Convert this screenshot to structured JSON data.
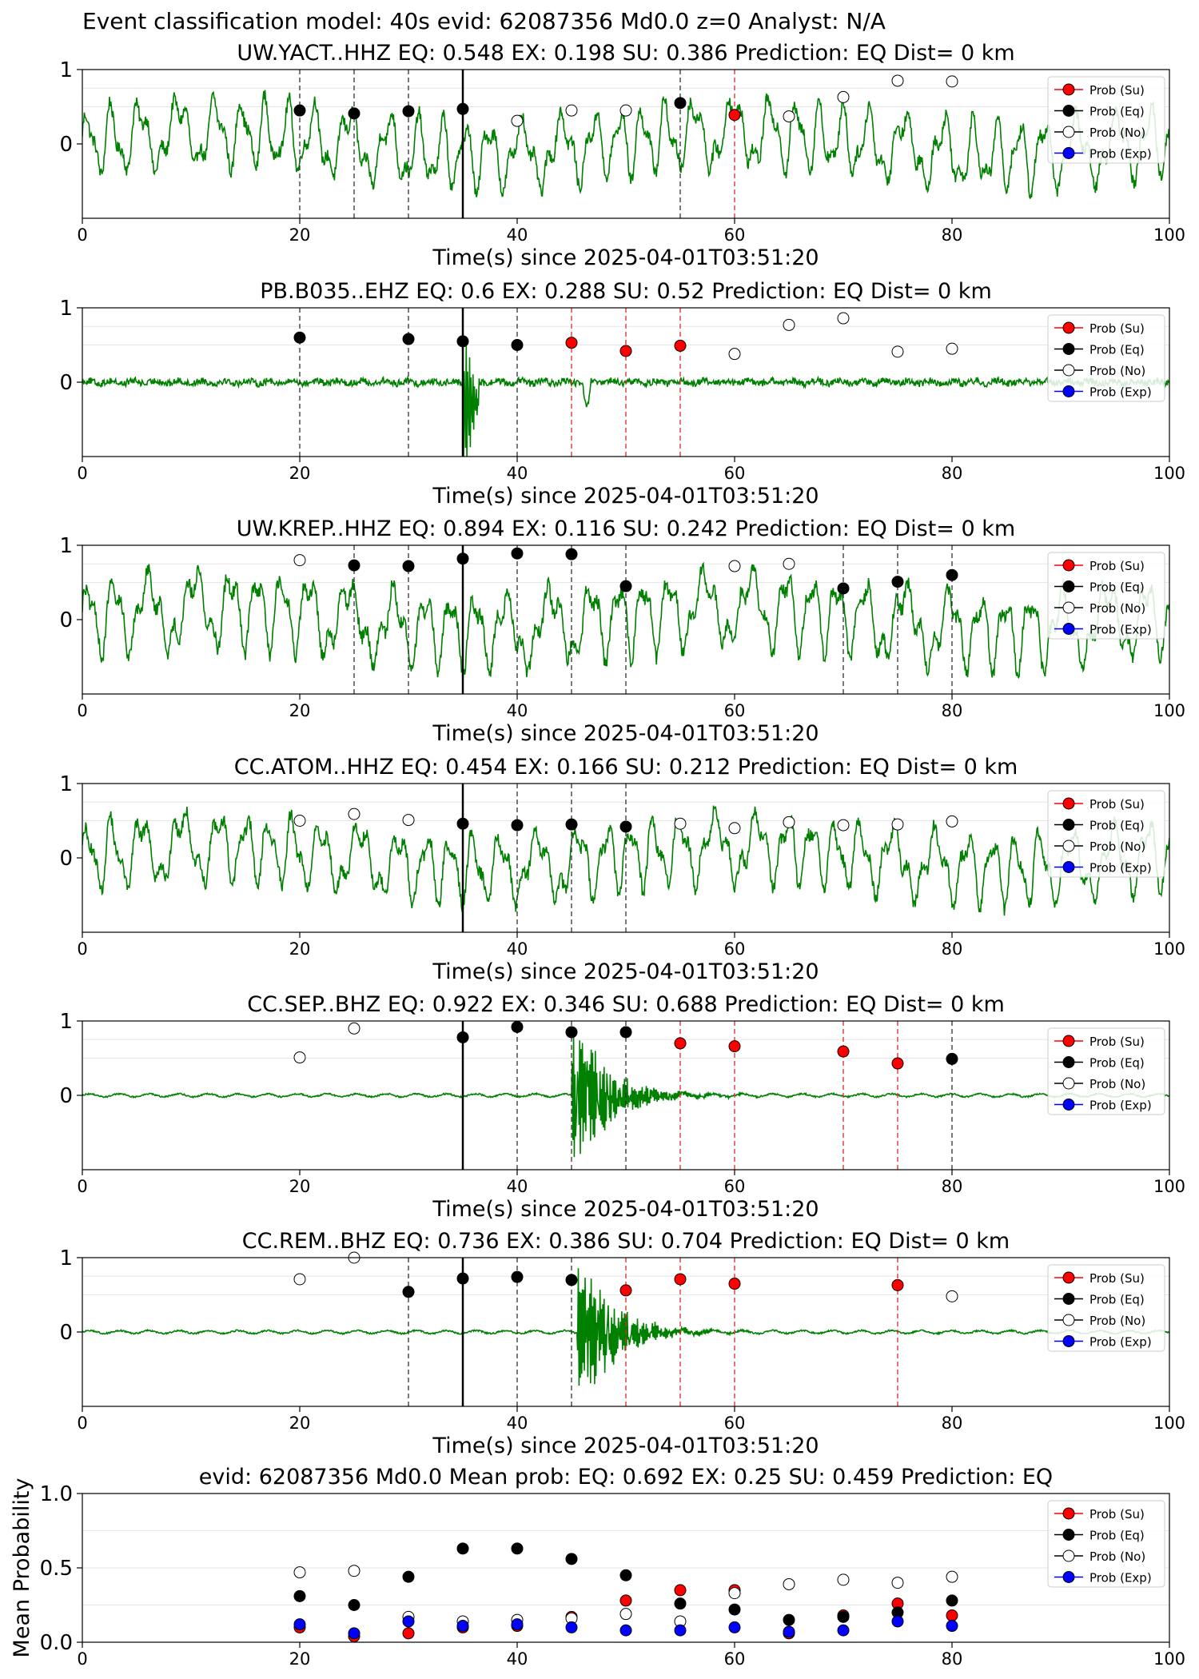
{
  "figure": {
    "title": "Event classification model: 40s evid: 62087356 Md0.0 z=0 Analyst: N/A"
  },
  "legend_labels": [
    "Prob (Su)",
    "Prob (Eq)",
    "Prob (No)",
    "Prob (Exp)"
  ],
  "colors": {
    "su": "#ff0000",
    "eq": "#000000",
    "no": "#ffffff",
    "exp": "#0000ff",
    "trace": "#008000"
  },
  "chart_data": [
    {
      "type": "line",
      "title": "UW.YACT..HHZ   EQ: 0.548  EX: 0.198  SU: 0.386   Prediction: EQ    Dist= 0 km",
      "xlabel": "Time(s) since 2025-04-01T03:51:20",
      "xlim": [
        0,
        100
      ],
      "ylim": [
        -1,
        1
      ],
      "xticks": [
        "0",
        "20",
        "40",
        "60",
        "80",
        "100"
      ],
      "yticks": [
        "1",
        "0"
      ],
      "trace": "noise",
      "trace_amplitude": 0.5,
      "origin_time": 35,
      "eq_lines": [
        20,
        25,
        30,
        55
      ],
      "su_lines": [
        60
      ],
      "points": [
        {
          "x": 20,
          "y": 0.45,
          "cls": "eq"
        },
        {
          "x": 25,
          "y": 0.41,
          "cls": "eq"
        },
        {
          "x": 30,
          "y": 0.44,
          "cls": "eq"
        },
        {
          "x": 35,
          "y": 0.47,
          "cls": "eq"
        },
        {
          "x": 40,
          "y": 0.31,
          "cls": "no"
        },
        {
          "x": 45,
          "y": 0.45,
          "cls": "no"
        },
        {
          "x": 50,
          "y": 0.45,
          "cls": "no"
        },
        {
          "x": 55,
          "y": 0.55,
          "cls": "eq"
        },
        {
          "x": 60,
          "y": 0.39,
          "cls": "su"
        },
        {
          "x": 65,
          "y": 0.37,
          "cls": "no"
        },
        {
          "x": 70,
          "y": 0.63,
          "cls": "no"
        },
        {
          "x": 75,
          "y": 0.85,
          "cls": "no"
        },
        {
          "x": 80,
          "y": 0.84,
          "cls": "no"
        }
      ]
    },
    {
      "type": "line",
      "title": "PB.B035..EHZ   EQ: 0.6  EX: 0.288  SU: 0.52   Prediction: EQ    Dist= 0 km",
      "xlabel": "Time(s) since 2025-04-01T03:51:20",
      "xlim": [
        0,
        100
      ],
      "ylim": [
        -1,
        1
      ],
      "xticks": [
        "0",
        "20",
        "40",
        "60",
        "80",
        "100"
      ],
      "yticks": [
        "1",
        "0"
      ],
      "trace": "spike",
      "trace_amplitude": 0.05,
      "origin_time": 35,
      "eq_lines": [
        20,
        30,
        40
      ],
      "su_lines": [
        45,
        50,
        55
      ],
      "points": [
        {
          "x": 20,
          "y": 0.6,
          "cls": "eq"
        },
        {
          "x": 30,
          "y": 0.58,
          "cls": "eq"
        },
        {
          "x": 35,
          "y": 0.55,
          "cls": "eq"
        },
        {
          "x": 40,
          "y": 0.5,
          "cls": "eq"
        },
        {
          "x": 45,
          "y": 0.53,
          "cls": "su"
        },
        {
          "x": 50,
          "y": 0.42,
          "cls": "su"
        },
        {
          "x": 55,
          "y": 0.49,
          "cls": "su"
        },
        {
          "x": 60,
          "y": 0.38,
          "cls": "no"
        },
        {
          "x": 65,
          "y": 0.77,
          "cls": "no"
        },
        {
          "x": 70,
          "y": 0.86,
          "cls": "no"
        },
        {
          "x": 75,
          "y": 0.41,
          "cls": "no"
        },
        {
          "x": 80,
          "y": 0.45,
          "cls": "no"
        }
      ]
    },
    {
      "type": "line",
      "title": "UW.KREP..HHZ   EQ: 0.894  EX: 0.116  SU: 0.242   Prediction: EQ    Dist= 0 km",
      "xlabel": "Time(s) since 2025-04-01T03:51:20",
      "xlim": [
        0,
        100
      ],
      "ylim": [
        -1,
        1
      ],
      "xticks": [
        "0",
        "20",
        "40",
        "60",
        "80",
        "100"
      ],
      "yticks": [
        "1",
        "0"
      ],
      "trace": "noise",
      "trace_amplitude": 0.55,
      "origin_time": 35,
      "eq_lines": [
        25,
        30,
        40,
        45,
        50,
        70,
        75,
        80
      ],
      "su_lines": [],
      "points": [
        {
          "x": 20,
          "y": 0.8,
          "cls": "no"
        },
        {
          "x": 25,
          "y": 0.73,
          "cls": "eq"
        },
        {
          "x": 30,
          "y": 0.72,
          "cls": "eq"
        },
        {
          "x": 35,
          "y": 0.82,
          "cls": "eq"
        },
        {
          "x": 40,
          "y": 0.89,
          "cls": "eq"
        },
        {
          "x": 45,
          "y": 0.88,
          "cls": "eq"
        },
        {
          "x": 50,
          "y": 0.45,
          "cls": "eq"
        },
        {
          "x": 60,
          "y": 0.72,
          "cls": "no"
        },
        {
          "x": 65,
          "y": 0.75,
          "cls": "no"
        },
        {
          "x": 70,
          "y": 0.42,
          "cls": "eq"
        },
        {
          "x": 75,
          "y": 0.51,
          "cls": "eq"
        },
        {
          "x": 80,
          "y": 0.6,
          "cls": "eq"
        }
      ]
    },
    {
      "type": "line",
      "title": "CC.ATOM..HHZ   EQ: 0.454  EX: 0.166  SU: 0.212   Prediction: EQ    Dist= 0 km",
      "xlabel": "Time(s) since 2025-04-01T03:51:20",
      "xlim": [
        0,
        100
      ],
      "ylim": [
        -1,
        1
      ],
      "xticks": [
        "0",
        "20",
        "40",
        "60",
        "80",
        "100"
      ],
      "yticks": [
        "1",
        "0"
      ],
      "trace": "noise",
      "trace_amplitude": 0.5,
      "origin_time": 35,
      "eq_lines": [
        40,
        45,
        50
      ],
      "su_lines": [],
      "points": [
        {
          "x": 20,
          "y": 0.5,
          "cls": "no"
        },
        {
          "x": 25,
          "y": 0.59,
          "cls": "no"
        },
        {
          "x": 30,
          "y": 0.51,
          "cls": "no"
        },
        {
          "x": 35,
          "y": 0.46,
          "cls": "eq"
        },
        {
          "x": 40,
          "y": 0.44,
          "cls": "eq"
        },
        {
          "x": 45,
          "y": 0.45,
          "cls": "eq"
        },
        {
          "x": 50,
          "y": 0.42,
          "cls": "eq"
        },
        {
          "x": 55,
          "y": 0.46,
          "cls": "no"
        },
        {
          "x": 60,
          "y": 0.4,
          "cls": "no"
        },
        {
          "x": 65,
          "y": 0.48,
          "cls": "no"
        },
        {
          "x": 70,
          "y": 0.44,
          "cls": "no"
        },
        {
          "x": 75,
          "y": 0.45,
          "cls": "no"
        },
        {
          "x": 80,
          "y": 0.49,
          "cls": "no"
        }
      ]
    },
    {
      "type": "line",
      "title": "CC.SEP..BHZ   EQ: 0.922  EX: 0.346  SU: 0.688   Prediction: EQ    Dist= 0 km",
      "xlabel": "Time(s) since 2025-04-01T03:51:20",
      "xlim": [
        0,
        100
      ],
      "ylim": [
        -1,
        1
      ],
      "xticks": [
        "0",
        "20",
        "40",
        "60",
        "80",
        "100"
      ],
      "yticks": [
        "1",
        "0"
      ],
      "trace": "burst",
      "burst_start": 45,
      "trace_amplitude": 0.02,
      "origin_time": 35,
      "eq_lines": [
        40,
        45,
        50,
        80
      ],
      "su_lines": [
        55,
        60,
        70,
        75
      ],
      "points": [
        {
          "x": 20,
          "y": 0.51,
          "cls": "no"
        },
        {
          "x": 25,
          "y": 0.9,
          "cls": "no"
        },
        {
          "x": 35,
          "y": 0.78,
          "cls": "eq"
        },
        {
          "x": 40,
          "y": 0.92,
          "cls": "eq"
        },
        {
          "x": 45,
          "y": 0.85,
          "cls": "eq"
        },
        {
          "x": 50,
          "y": 0.85,
          "cls": "eq"
        },
        {
          "x": 55,
          "y": 0.7,
          "cls": "su"
        },
        {
          "x": 60,
          "y": 0.66,
          "cls": "su"
        },
        {
          "x": 70,
          "y": 0.59,
          "cls": "su"
        },
        {
          "x": 75,
          "y": 0.43,
          "cls": "su"
        },
        {
          "x": 80,
          "y": 0.49,
          "cls": "eq"
        }
      ]
    },
    {
      "type": "line",
      "title": "CC.REM..BHZ   EQ: 0.736  EX: 0.386  SU: 0.704   Prediction: EQ    Dist= 0 km",
      "xlabel": "Time(s) since 2025-04-01T03:51:20",
      "xlim": [
        0,
        100
      ],
      "ylim": [
        -1,
        1
      ],
      "xticks": [
        "0",
        "20",
        "40",
        "60",
        "80",
        "100"
      ],
      "yticks": [
        "1",
        "0"
      ],
      "trace": "burst",
      "burst_start": 45.5,
      "trace_amplitude": 0.02,
      "origin_time": 35,
      "eq_lines": [
        30,
        40,
        45
      ],
      "su_lines": [
        50,
        55,
        60,
        75
      ],
      "points": [
        {
          "x": 20,
          "y": 0.71,
          "cls": "no"
        },
        {
          "x": 25,
          "y": 1.0,
          "cls": "no"
        },
        {
          "x": 30,
          "y": 0.54,
          "cls": "eq"
        },
        {
          "x": 35,
          "y": 0.72,
          "cls": "eq"
        },
        {
          "x": 40,
          "y": 0.74,
          "cls": "eq"
        },
        {
          "x": 45,
          "y": 0.7,
          "cls": "eq"
        },
        {
          "x": 50,
          "y": 0.56,
          "cls": "su"
        },
        {
          "x": 55,
          "y": 0.71,
          "cls": "su"
        },
        {
          "x": 60,
          "y": 0.65,
          "cls": "su"
        },
        {
          "x": 75,
          "y": 0.63,
          "cls": "su"
        },
        {
          "x": 80,
          "y": 0.48,
          "cls": "no"
        }
      ]
    },
    {
      "type": "scatter",
      "title": "evid: 62087356  Md0.0   Mean prob:   EQ: 0.692  EX: 0.25  SU: 0.459   Prediction: EQ",
      "xlabel": "",
      "ylabel": "Mean Probability",
      "xlim": [
        0,
        100
      ],
      "ylim": [
        0,
        1.0
      ],
      "xticks": [
        "0",
        "20",
        "40",
        "60",
        "80",
        "100"
      ],
      "yticks": [
        "1.0",
        "0.5",
        "0.0"
      ],
      "x": [
        20,
        25,
        30,
        35,
        40,
        45,
        50,
        55,
        60,
        65,
        70,
        75,
        80
      ],
      "series": [
        {
          "name": "Prob (Su)",
          "cls": "su",
          "values": [
            0.1,
            0.04,
            0.06,
            0.1,
            0.11,
            0.17,
            0.28,
            0.35,
            0.35,
            0.06,
            0.18,
            0.26,
            0.18
          ]
        },
        {
          "name": "Prob (Eq)",
          "cls": "eq",
          "values": [
            0.31,
            0.25,
            0.44,
            0.63,
            0.63,
            0.56,
            0.45,
            0.26,
            0.22,
            0.15,
            0.17,
            0.2,
            0.28
          ]
        },
        {
          "name": "Prob (No)",
          "cls": "no",
          "values": [
            0.47,
            0.48,
            0.17,
            0.14,
            0.15,
            0.16,
            0.19,
            0.14,
            0.33,
            0.39,
            0.42,
            0.4,
            0.44
          ]
        },
        {
          "name": "Prob (Exp)",
          "cls": "exp",
          "values": [
            0.12,
            0.06,
            0.14,
            0.11,
            0.12,
            0.1,
            0.08,
            0.08,
            0.1,
            0.07,
            0.08,
            0.14,
            0.11
          ]
        }
      ]
    }
  ]
}
